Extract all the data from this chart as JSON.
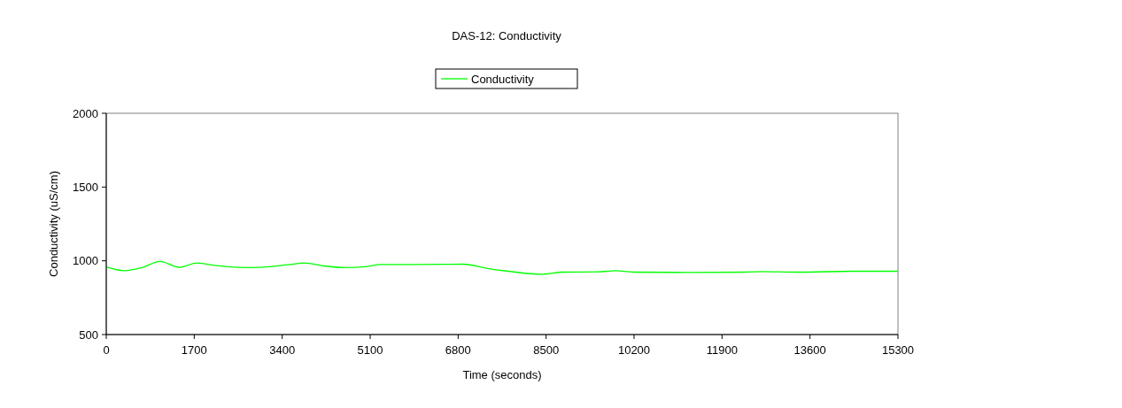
{
  "chart_data": {
    "type": "line",
    "title": "DAS-12: Conductivity",
    "xlabel": "Time (seconds)",
    "ylabel": "Conductivity (uS/cm)",
    "xlim": [
      0,
      15300
    ],
    "xticks": [
      0,
      1700,
      3400,
      5100,
      6800,
      8500,
      10200,
      11900,
      13600,
      15300
    ],
    "ylim": [
      500,
      2000
    ],
    "yticks": [
      500,
      1000,
      1500,
      2000
    ],
    "grid": false,
    "legend": "top",
    "marker": "none",
    "line_style": "solid",
    "series": [
      {
        "name": "Conductivity",
        "color": "#00ff00",
        "x": [
          0,
          345,
          690,
          1036,
          1410,
          1755,
          2130,
          2820,
          3510,
          3825,
          4200,
          4605,
          5010,
          5295,
          5985,
          6905,
          7365,
          7770,
          8430,
          8805,
          9495,
          9840,
          10190,
          11280,
          12320,
          12665,
          13360,
          14395,
          15300
        ],
        "values": [
          958,
          933,
          954,
          996,
          956,
          985,
          967,
          954,
          973,
          985,
          965,
          954,
          960,
          975,
          975,
          977,
          948,
          929,
          909,
          923,
          925,
          933,
          923,
          921,
          923,
          927,
          923,
          929,
          929
        ]
      }
    ]
  }
}
